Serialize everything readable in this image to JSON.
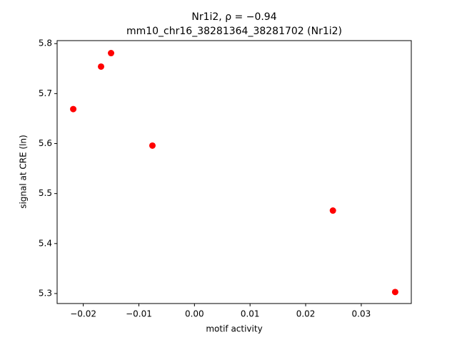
{
  "chart_data": {
    "type": "scatter",
    "title": "Nr1i2, ρ = −0.94",
    "subtitle": "mm10_chr16_38281364_38281702 (Nr1i2)",
    "x_label": "motif activity",
    "y_label": "signal at CRE (ln)",
    "series": [
      {
        "color": "#ff0000",
        "x": [
          -0.0218,
          -0.0168,
          -0.015,
          -0.00756,
          0.0249,
          0.0361
        ],
        "values": [
          5.669,
          5.754,
          5.781,
          5.596,
          5.466,
          5.303
        ]
      }
    ],
    "xlim": [
      -0.0247,
      0.039
    ],
    "ylim": [
      5.28,
      5.806
    ],
    "xticks": [
      {
        "value": -0.02,
        "label": "−0.02"
      },
      {
        "value": -0.01,
        "label": "−0.01"
      },
      {
        "value": 0,
        "label": "0.00"
      },
      0.01,
      0.02,
      0.03
    ],
    "yticks": [
      5.3,
      5.4,
      5.5,
      5.6,
      5.7,
      5.8
    ],
    "grid": false
  }
}
